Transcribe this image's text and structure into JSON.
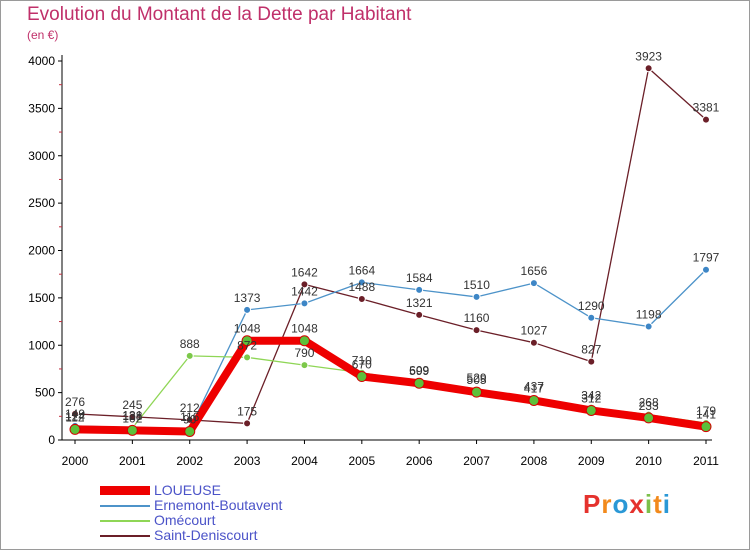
{
  "title": "Evolution du Montant de la Dette par Habitant",
  "unit": "(en €)",
  "logo": "Proxiti",
  "colors": {
    "title": "#c0306a",
    "LOUEUSE": "#ee0000",
    "Ernemont-Boutavent": "#4d93c9",
    "Omécourt": "#8fd656",
    "Saint-Deniscourt": "#6b1f28"
  },
  "chart_data": {
    "type": "line",
    "title": "Evolution du Montant de la Dette par Habitant",
    "ylabel": "(en €)",
    "xlabel": "",
    "x": [
      "2000",
      "2001",
      "2002",
      "2003",
      "2004",
      "2005",
      "2006",
      "2007",
      "2008",
      "2009",
      "2010",
      "2011"
    ],
    "ylim": [
      0,
      4000
    ],
    "yticks": [
      0,
      500,
      1000,
      1500,
      2000,
      2500,
      3000,
      3500,
      4000
    ],
    "grid": false,
    "legend": "bottom-left",
    "series": [
      {
        "name": "LOUEUSE",
        "values": [
          112,
          102,
          90,
          1048,
          1048,
          670,
          599,
          505,
          417,
          312,
          233,
          141
        ]
      },
      {
        "name": "Ernemont-Boutavent",
        "values": [
          149,
          131,
          116,
          1373,
          1442,
          1664,
          1584,
          1510,
          1656,
          1290,
          1198,
          1797
        ]
      },
      {
        "name": "Omécourt",
        "values": [
          124,
          128,
          888,
          872,
          790,
          710,
          609,
          529,
          437,
          342,
          268,
          179
        ]
      },
      {
        "name": "Saint-Deniscourt",
        "values": [
          276,
          245,
          212,
          175,
          1642,
          1488,
          1321,
          1160,
          1027,
          827,
          3923,
          3381
        ]
      }
    ]
  }
}
